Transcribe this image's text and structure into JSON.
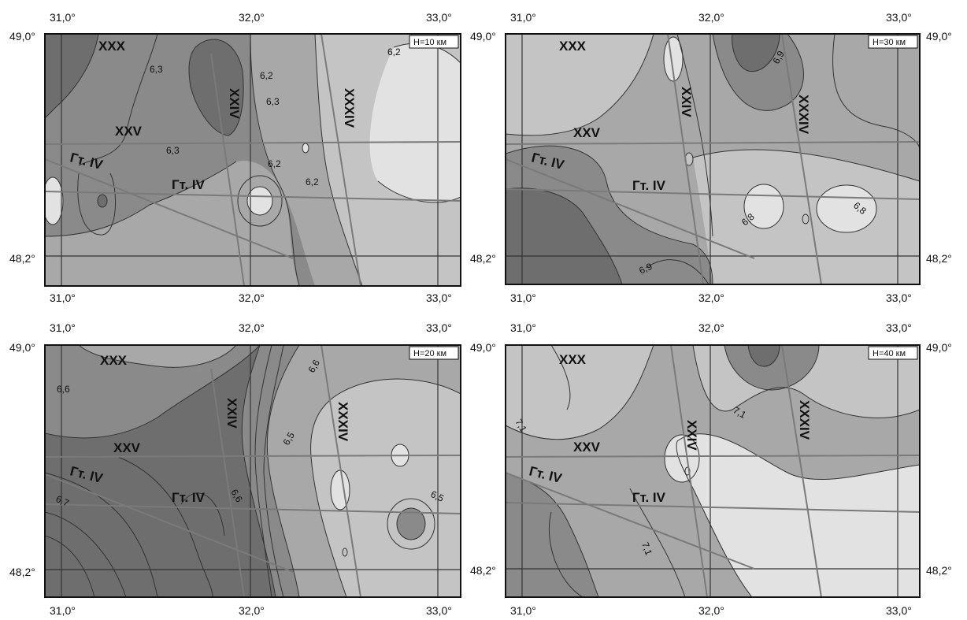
{
  "panels": [
    {
      "depth_label": "H=10 км",
      "lon_ticks": [
        "31,0°",
        "32,0°",
        "33,0°"
      ],
      "lat_ticks": [
        "49,0°",
        "48,2°"
      ],
      "profiles": [
        "XXX",
        "XXV",
        "XXIV",
        "XXXIV",
        "Гт. IV",
        "Гт. IV"
      ],
      "contours": [
        "6,3",
        "6,3",
        "6,2",
        "6,3",
        "6,2",
        "6,2",
        "6,2"
      ]
    },
    {
      "depth_label": "H=30 км",
      "lon_ticks": [
        "31,0°",
        "32,0°",
        "33,0°"
      ],
      "lat_ticks": [
        "49,0°",
        "48,2°"
      ],
      "profiles": [
        "XXX",
        "XXV",
        "XXIV",
        "XXXIV",
        "Гт. IV",
        "Гт. IV"
      ],
      "contours": [
        "6,9",
        "6,8",
        "6,8",
        "6,9"
      ]
    },
    {
      "depth_label": "H=20 км",
      "lon_ticks": [
        "31,0°",
        "32,0°",
        "33,0°"
      ],
      "lat_ticks": [
        "49,0°",
        "48,2°"
      ],
      "profiles": [
        "XXX",
        "XXV",
        "XXIV",
        "XXXIV",
        "Гт. IV",
        "Гт. IV"
      ],
      "contours": [
        "6,6",
        "6,6",
        "6,5",
        "6,7",
        "6,6",
        "6,5"
      ]
    },
    {
      "depth_label": "H=40 км",
      "lon_ticks": [
        "31,0°",
        "32,0°",
        "33,0°"
      ],
      "lat_ticks": [
        "49,0°",
        "48,2°"
      ],
      "profiles": [
        "XXX",
        "XXV",
        "XXIV",
        "XXXIV",
        "Гт. IV",
        "Гт. IV"
      ],
      "contours": [
        "7,1",
        "7,1",
        "7,1"
      ]
    }
  ],
  "colors": {
    "very_dark": "#6e6e6e",
    "dark": "#8a8a8a",
    "mid": "#a8a8a8",
    "light": "#c4c4c4",
    "very_light": "#e2e2e2",
    "line": "#333333",
    "profile_line": "#7a7a7a"
  }
}
